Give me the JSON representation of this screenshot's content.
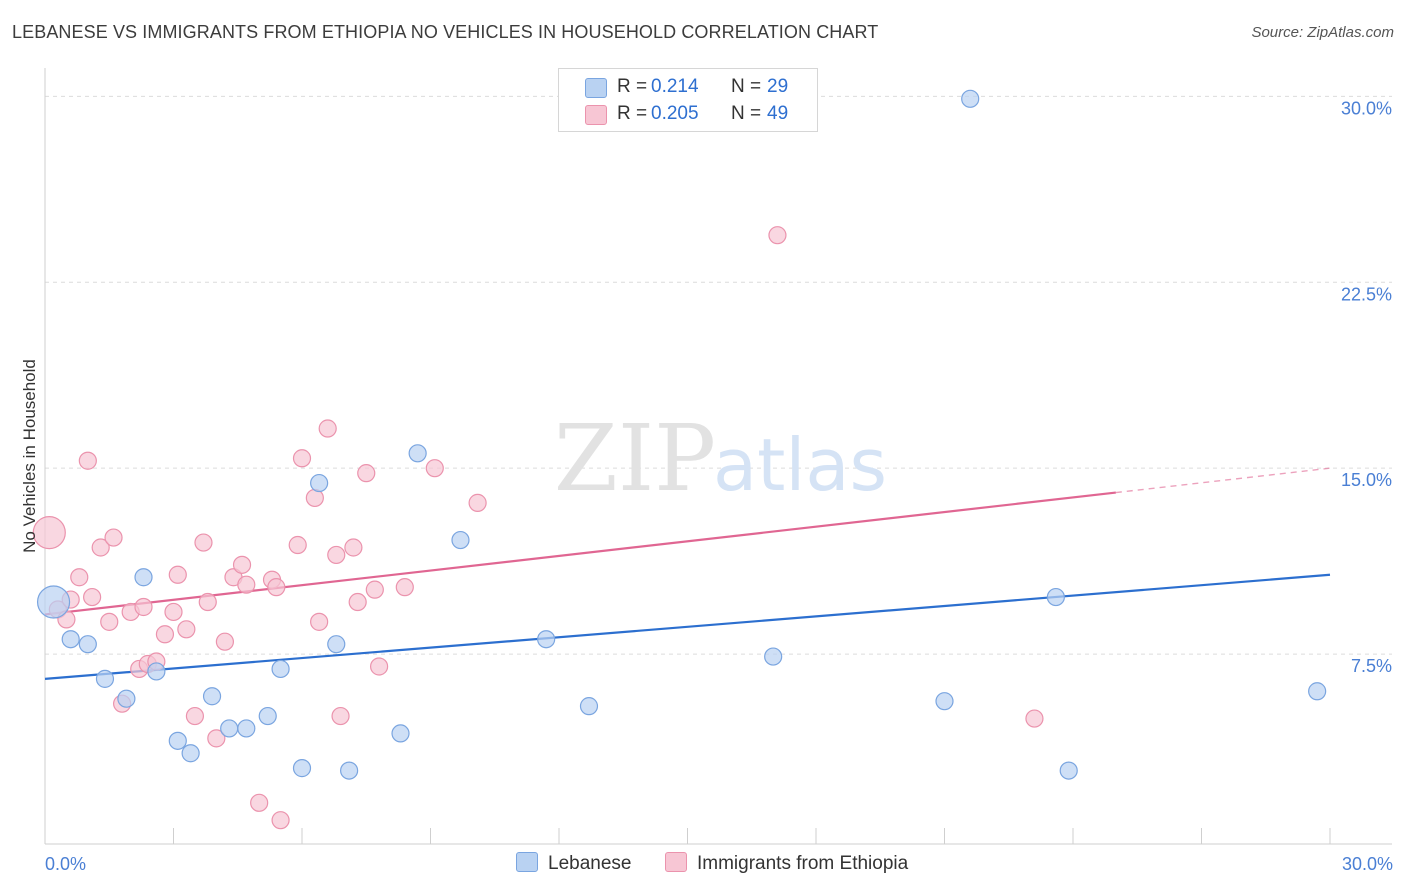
{
  "title": "LEBANESE VS IMMIGRANTS FROM ETHIOPIA NO VEHICLES IN HOUSEHOLD CORRELATION CHART",
  "source": "Source: ZipAtlas.com",
  "watermark": {
    "zip": "ZIP",
    "atlas": "atlas"
  },
  "legend": {
    "r_label": "R =",
    "n_label": "N =",
    "rows": [
      {
        "r": "0.214",
        "n": "29"
      },
      {
        "r": "0.205",
        "n": "49"
      }
    ]
  },
  "chart_data": {
    "type": "scatter",
    "title": "LEBANESE VS IMMIGRANTS FROM ETHIOPIA NO VEHICLES IN HOUSEHOLD CORRELATION CHART",
    "xlabel": "",
    "ylabel": "No Vehicles in Household",
    "xlim": [
      0,
      30
    ],
    "ylim": [
      0,
      30.7
    ],
    "x_tick_labels": [
      "0.0%",
      "30.0%"
    ],
    "y_ticks": [
      7.5,
      15.0,
      22.5,
      30.0
    ],
    "y_tick_labels": [
      "7.5%",
      "15.0%",
      "22.5%",
      "30.0%"
    ],
    "grid": true,
    "legend_position": "top-center",
    "colors": {
      "lebanese_fill": "#b9d2f2",
      "lebanese_stroke": "#7aa5e0",
      "lebanese_line": "#2c6fcf",
      "ethiopia_fill": "#f7c6d4",
      "ethiopia_stroke": "#eb93ad",
      "ethiopia_line": "#e06692"
    },
    "series": [
      {
        "name": "Lebanese",
        "r": 0.214,
        "n": 29,
        "trend": {
          "x0": 0,
          "y0": 6.5,
          "x1": 30,
          "y1": 10.7,
          "dash_from": null
        },
        "points": [
          {
            "x": 0.2,
            "y": 9.6,
            "big": true
          },
          {
            "x": 0.6,
            "y": 8.1
          },
          {
            "x": 1.0,
            "y": 7.9
          },
          {
            "x": 1.4,
            "y": 6.5
          },
          {
            "x": 1.9,
            "y": 5.7
          },
          {
            "x": 2.3,
            "y": 10.6
          },
          {
            "x": 2.6,
            "y": 6.8
          },
          {
            "x": 3.1,
            "y": 4.0
          },
          {
            "x": 3.4,
            "y": 3.5
          },
          {
            "x": 3.9,
            "y": 5.8
          },
          {
            "x": 4.3,
            "y": 4.5
          },
          {
            "x": 4.7,
            "y": 4.5
          },
          {
            "x": 5.2,
            "y": 5.0
          },
          {
            "x": 5.5,
            "y": 6.9
          },
          {
            "x": 6.0,
            "y": 2.9
          },
          {
            "x": 6.4,
            "y": 14.4
          },
          {
            "x": 6.8,
            "y": 7.9
          },
          {
            "x": 7.1,
            "y": 2.8
          },
          {
            "x": 8.3,
            "y": 4.3
          },
          {
            "x": 8.7,
            "y": 15.6
          },
          {
            "x": 9.7,
            "y": 12.1
          },
          {
            "x": 11.7,
            "y": 8.1
          },
          {
            "x": 12.7,
            "y": 5.4
          },
          {
            "x": 17.0,
            "y": 7.4
          },
          {
            "x": 21.0,
            "y": 5.6
          },
          {
            "x": 21.6,
            "y": 29.9
          },
          {
            "x": 23.6,
            "y": 9.8
          },
          {
            "x": 23.9,
            "y": 2.8
          },
          {
            "x": 29.7,
            "y": 6.0
          }
        ]
      },
      {
        "name": "Immigrants from Ethiopia",
        "r": 0.205,
        "n": 49,
        "trend": {
          "x0": 0,
          "y0": 9.1,
          "x1": 30,
          "y1": 15.0,
          "dash_from": 25.0
        },
        "points": [
          {
            "x": 0.1,
            "y": 12.4,
            "big": true
          },
          {
            "x": 0.3,
            "y": 9.3
          },
          {
            "x": 0.5,
            "y": 8.9
          },
          {
            "x": 0.6,
            "y": 9.7
          },
          {
            "x": 0.8,
            "y": 10.6
          },
          {
            "x": 1.0,
            "y": 15.3
          },
          {
            "x": 1.1,
            "y": 9.8
          },
          {
            "x": 1.3,
            "y": 11.8
          },
          {
            "x": 1.5,
            "y": 8.8
          },
          {
            "x": 1.6,
            "y": 12.2
          },
          {
            "x": 1.8,
            "y": 5.5
          },
          {
            "x": 2.0,
            "y": 9.2
          },
          {
            "x": 2.2,
            "y": 6.9
          },
          {
            "x": 2.3,
            "y": 9.4
          },
          {
            "x": 2.4,
            "y": 7.1
          },
          {
            "x": 2.6,
            "y": 7.2
          },
          {
            "x": 2.8,
            "y": 8.3
          },
          {
            "x": 3.0,
            "y": 9.2
          },
          {
            "x": 3.1,
            "y": 10.7
          },
          {
            "x": 3.3,
            "y": 8.5
          },
          {
            "x": 3.5,
            "y": 5.0
          },
          {
            "x": 3.7,
            "y": 12.0
          },
          {
            "x": 3.8,
            "y": 9.6
          },
          {
            "x": 4.0,
            "y": 4.1
          },
          {
            "x": 4.2,
            "y": 8.0
          },
          {
            "x": 4.4,
            "y": 10.6
          },
          {
            "x": 4.6,
            "y": 11.1
          },
          {
            "x": 4.7,
            "y": 10.3
          },
          {
            "x": 5.0,
            "y": 1.5
          },
          {
            "x": 5.3,
            "y": 10.5
          },
          {
            "x": 5.4,
            "y": 10.2
          },
          {
            "x": 5.5,
            "y": 0.8
          },
          {
            "x": 5.9,
            "y": 11.9
          },
          {
            "x": 6.0,
            "y": 15.4
          },
          {
            "x": 6.3,
            "y": 13.8
          },
          {
            "x": 6.4,
            "y": 8.8
          },
          {
            "x": 6.6,
            "y": 16.6
          },
          {
            "x": 6.8,
            "y": 11.5
          },
          {
            "x": 6.9,
            "y": 5.0
          },
          {
            "x": 7.2,
            "y": 11.8
          },
          {
            "x": 7.3,
            "y": 9.6
          },
          {
            "x": 7.5,
            "y": 14.8
          },
          {
            "x": 7.7,
            "y": 10.1
          },
          {
            "x": 7.8,
            "y": 7.0
          },
          {
            "x": 8.4,
            "y": 10.2
          },
          {
            "x": 9.1,
            "y": 15.0
          },
          {
            "x": 10.1,
            "y": 13.6
          },
          {
            "x": 17.1,
            "y": 24.4
          },
          {
            "x": 23.1,
            "y": 4.9
          }
        ]
      }
    ]
  }
}
